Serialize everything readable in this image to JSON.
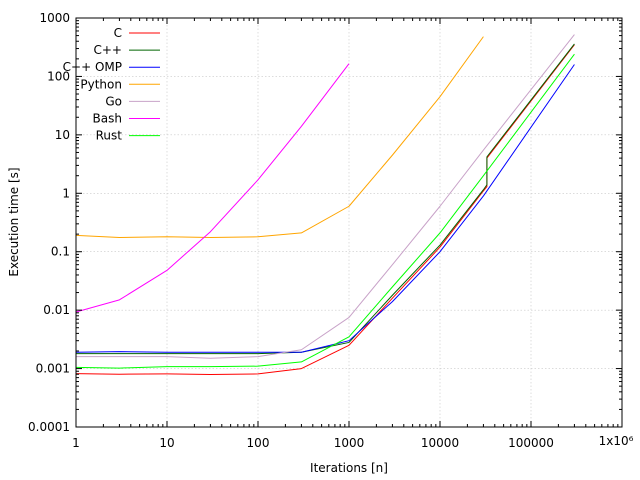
{
  "chart_data": {
    "type": "line",
    "title": "",
    "xlabel": "Iterations [n]",
    "ylabel": "Execution time [s]",
    "xscale": "log",
    "yscale": "log",
    "xlim": [
      1,
      1000000
    ],
    "ylim": [
      0.0001,
      1000
    ],
    "grid": true,
    "legend_position": "top-left",
    "x_ticks": [
      {
        "value": 1,
        "label": "1"
      },
      {
        "value": 10,
        "label": "10"
      },
      {
        "value": 100,
        "label": "100"
      },
      {
        "value": 1000,
        "label": "1000"
      },
      {
        "value": 10000,
        "label": "10000"
      },
      {
        "value": 100000,
        "label": "100000"
      },
      {
        "value": 1000000,
        "label": "1x10⁶"
      }
    ],
    "y_ticks": [
      {
        "value": 0.0001,
        "label": "0.0001"
      },
      {
        "value": 0.001,
        "label": "0.001"
      },
      {
        "value": 0.01,
        "label": "0.01"
      },
      {
        "value": 0.1,
        "label": "0.1"
      },
      {
        "value": 1,
        "label": "1"
      },
      {
        "value": 10,
        "label": "10"
      },
      {
        "value": 100,
        "label": "100"
      },
      {
        "value": 1000,
        "label": "1000"
      }
    ],
    "series": [
      {
        "name": "C",
        "color": "#ff0000",
        "points": [
          [
            1,
            0.00082
          ],
          [
            3,
            0.0008
          ],
          [
            10,
            0.00081
          ],
          [
            30,
            0.00079
          ],
          [
            100,
            0.00081
          ],
          [
            300,
            0.001
          ],
          [
            1000,
            0.0025
          ],
          [
            3000,
            0.016
          ],
          [
            10000,
            0.12
          ],
          [
            30000,
            1.1
          ],
          [
            32768,
            1.3
          ],
          [
            32768,
            4.0
          ],
          [
            300000,
            350
          ]
        ]
      },
      {
        "name": "C++",
        "color": "#006400",
        "points": [
          [
            1,
            0.0018
          ],
          [
            3,
            0.0018
          ],
          [
            10,
            0.0018
          ],
          [
            30,
            0.0018
          ],
          [
            100,
            0.0018
          ],
          [
            300,
            0.0019
          ],
          [
            1000,
            0.0028
          ],
          [
            3000,
            0.018
          ],
          [
            10000,
            0.13
          ],
          [
            30000,
            1.15
          ],
          [
            32768,
            1.4
          ],
          [
            32768,
            4.2
          ],
          [
            300000,
            360
          ]
        ]
      },
      {
        "name": "C++ OMP",
        "color": "#0000ff",
        "points": [
          [
            1,
            0.0019
          ],
          [
            3,
            0.00195
          ],
          [
            10,
            0.0019
          ],
          [
            30,
            0.0019
          ],
          [
            100,
            0.0019
          ],
          [
            300,
            0.0019
          ],
          [
            1000,
            0.003
          ],
          [
            3000,
            0.014
          ],
          [
            10000,
            0.1
          ],
          [
            30000,
            0.9
          ],
          [
            300000,
            160
          ]
        ]
      },
      {
        "name": "Python",
        "color": "#ffa500",
        "points": [
          [
            1,
            0.19
          ],
          [
            3,
            0.175
          ],
          [
            10,
            0.18
          ],
          [
            30,
            0.175
          ],
          [
            100,
            0.18
          ],
          [
            300,
            0.21
          ],
          [
            1000,
            0.6
          ],
          [
            3000,
            4.5
          ],
          [
            10000,
            45
          ],
          [
            30000,
            480
          ]
        ]
      },
      {
        "name": "Go",
        "color": "#c8a2c8",
        "points": [
          [
            1,
            0.0016
          ],
          [
            3,
            0.0016
          ],
          [
            10,
            0.0016
          ],
          [
            30,
            0.0015
          ],
          [
            100,
            0.0016
          ],
          [
            300,
            0.0021
          ],
          [
            1000,
            0.0075
          ],
          [
            3000,
            0.06
          ],
          [
            10000,
            0.6
          ],
          [
            30000,
            5.5
          ],
          [
            300000,
            520
          ]
        ]
      },
      {
        "name": "Bash",
        "color": "#ff00ff",
        "points": [
          [
            1,
            0.0093
          ],
          [
            3,
            0.015
          ],
          [
            10,
            0.048
          ],
          [
            30,
            0.22
          ],
          [
            100,
            1.7
          ],
          [
            300,
            14
          ],
          [
            1000,
            165
          ]
        ]
      },
      {
        "name": "Rust",
        "color": "#00ff00",
        "points": [
          [
            1,
            0.00105
          ],
          [
            3,
            0.00102
          ],
          [
            10,
            0.00108
          ],
          [
            30,
            0.00108
          ],
          [
            100,
            0.0011
          ],
          [
            300,
            0.0013
          ],
          [
            1000,
            0.0035
          ],
          [
            3000,
            0.025
          ],
          [
            10000,
            0.21
          ],
          [
            30000,
            2.0
          ],
          [
            300000,
            240
          ]
        ]
      }
    ]
  }
}
